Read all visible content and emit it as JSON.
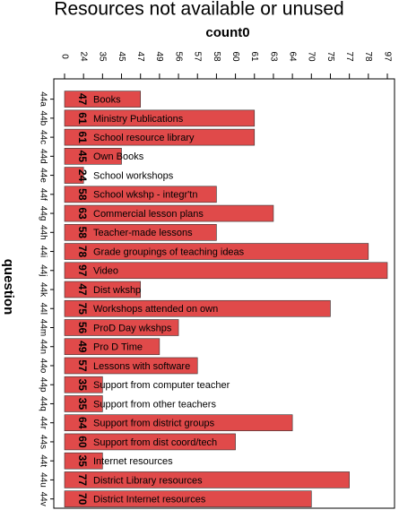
{
  "chart_data": {
    "type": "barh",
    "title": "Resources not available or unused",
    "x_label": "count0",
    "y_label": "question",
    "categories": [
      "44a",
      "44b",
      "44c",
      "44d",
      "44e",
      "44f",
      "44g",
      "44h",
      "44i",
      "44j",
      "44k",
      "44l",
      "44m",
      "44n",
      "44o",
      "44p",
      "44q",
      "44r",
      "44s",
      "44t",
      "44u",
      "44v"
    ],
    "bar_labels": [
      "Books",
      "Ministry Publications",
      "School resource library",
      "Own Books",
      "School workshops",
      "School wkshp - integr'tn",
      "Commercial lesson plans",
      "Teacher-made lessons",
      "Grade groupings of teaching ideas",
      "Video",
      "Dist wkshp",
      "Workshops attended on own",
      "ProD Day wkshps",
      "Pro D Time",
      "Lessons with software",
      "Support from computer teacher",
      "Support from other teachers",
      "Support from district groups",
      "Support from dist coord/tech",
      "Internet resources",
      "District Library resources",
      "District Internet resources"
    ],
    "values": [
      47,
      61,
      61,
      45,
      24,
      58,
      63,
      58,
      78,
      97,
      47,
      75,
      56,
      49,
      57,
      35,
      35,
      64,
      60,
      35,
      77,
      70
    ],
    "color": "#e04a4a",
    "xlim": [
      0,
      97
    ],
    "xticks": [
      0,
      24,
      35,
      45,
      47,
      49,
      56,
      57,
      58,
      60,
      61,
      63,
      64,
      70,
      75,
      77,
      78,
      97
    ]
  }
}
